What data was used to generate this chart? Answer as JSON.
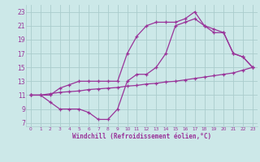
{
  "xlabel": "Windchill (Refroidissement éolien,°C)",
  "xlim": [
    -0.5,
    23.5
  ],
  "ylim": [
    6.5,
    24
  ],
  "xticks": [
    0,
    1,
    2,
    3,
    4,
    5,
    6,
    7,
    8,
    9,
    10,
    11,
    12,
    13,
    14,
    15,
    16,
    17,
    18,
    19,
    20,
    21,
    22,
    23
  ],
  "yticks": [
    7,
    9,
    11,
    13,
    15,
    17,
    19,
    21,
    23
  ],
  "bg_color": "#cce8e8",
  "grid_color": "#aacccc",
  "line_color": "#993399",
  "line1_x": [
    0,
    1,
    2,
    3,
    4,
    5,
    6,
    7,
    8,
    9,
    10,
    11,
    12,
    13,
    14,
    15,
    16,
    17,
    18,
    19,
    20,
    21,
    22,
    23
  ],
  "line1_y": [
    11.0,
    11.0,
    11.2,
    11.4,
    11.5,
    11.6,
    11.8,
    11.9,
    12.0,
    12.1,
    12.3,
    12.4,
    12.6,
    12.7,
    12.9,
    13.0,
    13.2,
    13.4,
    13.6,
    13.8,
    14.0,
    14.2,
    14.6,
    15.0
  ],
  "line2_x": [
    0,
    1,
    2,
    3,
    4,
    5,
    6,
    7,
    8,
    9,
    10,
    11,
    12,
    13,
    14,
    15,
    16,
    17,
    18,
    19,
    20,
    21,
    22,
    23
  ],
  "line2_y": [
    11,
    11,
    10,
    9,
    9,
    9,
    8.5,
    7.5,
    7.5,
    9,
    13,
    14,
    14,
    15,
    17,
    21,
    21.5,
    22,
    21,
    20,
    20,
    17,
    16.5,
    15
  ],
  "line3_x": [
    0,
    2,
    3,
    4,
    5,
    6,
    7,
    8,
    9,
    10,
    11,
    12,
    13,
    14,
    15,
    16,
    17,
    18,
    19,
    20,
    21,
    22,
    23
  ],
  "line3_y": [
    11,
    11,
    12,
    12.5,
    13,
    13,
    13,
    13,
    13,
    17,
    19.5,
    21,
    21.5,
    21.5,
    21.5,
    22,
    23,
    21,
    20.5,
    20,
    17,
    16.5,
    15
  ]
}
